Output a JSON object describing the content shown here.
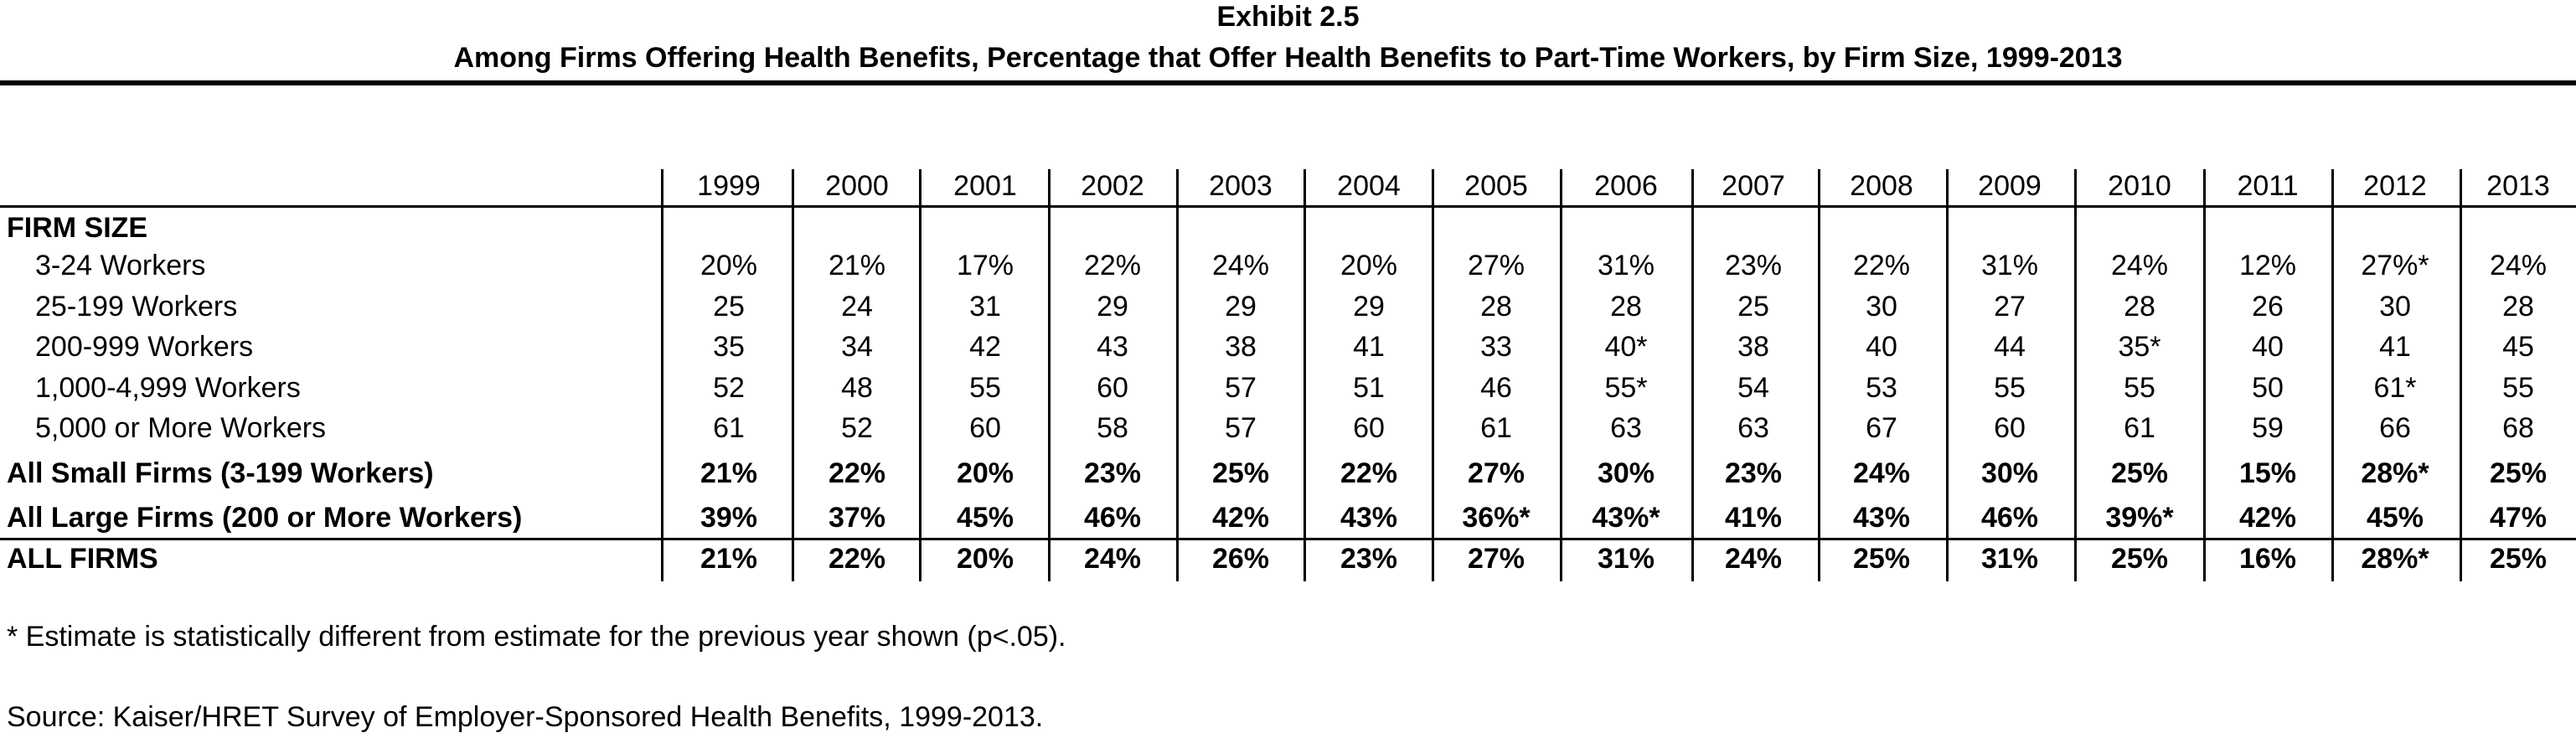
{
  "header": {
    "exhibit": "Exhibit 2.5",
    "subtitle": "Among Firms Offering Health Benefits, Percentage that Offer Health Benefits to Part-Time Workers, by Firm Size, 1999-2013"
  },
  "table": {
    "years": [
      "1999",
      "2000",
      "2001",
      "2002",
      "2003",
      "2004",
      "2005",
      "2006",
      "2007",
      "2008",
      "2009",
      "2010",
      "2011",
      "2012",
      "2013"
    ],
    "section_label": "FIRM SIZE",
    "rows": [
      {
        "label": "3-24 Workers",
        "style": "indent",
        "cells": [
          "20%",
          "21%",
          "17%",
          "22%",
          "24%",
          "20%",
          "27%",
          "31%",
          "23%",
          "22%",
          "31%",
          "24%",
          "12%",
          "27%*",
          "24%"
        ]
      },
      {
        "label": "25-199 Workers",
        "style": "indent",
        "cells": [
          "25",
          "24",
          "31",
          "29",
          "29",
          "29",
          "28",
          "28",
          "25",
          "30",
          "27",
          "28",
          "26",
          "30",
          "28"
        ]
      },
      {
        "label": "200-999 Workers",
        "style": "indent",
        "cells": [
          "35",
          "34",
          "42",
          "43",
          "38",
          "41",
          "33",
          "40*",
          "38",
          "40",
          "44",
          "35*",
          "40",
          "41",
          "45"
        ]
      },
      {
        "label": "1,000-4,999 Workers",
        "style": "indent",
        "cells": [
          "52",
          "48",
          "55",
          "60",
          "57",
          "51",
          "46",
          "55*",
          "54",
          "53",
          "55",
          "55",
          "50",
          "61*",
          "55"
        ]
      },
      {
        "label": "5,000 or More Workers",
        "style": "indent",
        "cells": [
          "61",
          "52",
          "60",
          "58",
          "57",
          "60",
          "61",
          "63",
          "63",
          "67",
          "60",
          "61",
          "59",
          "66",
          "68"
        ]
      },
      {
        "label": "All Small Firms (3-199 Workers)",
        "style": "bold",
        "cells": [
          "21%",
          "22%",
          "20%",
          "23%",
          "25%",
          "22%",
          "27%",
          "30%",
          "23%",
          "24%",
          "30%",
          "25%",
          "15%",
          "28%*",
          "25%"
        ]
      },
      {
        "label": "All Large Firms (200 or More Workers)",
        "style": "bold",
        "cells": [
          "39%",
          "37%",
          "45%",
          "46%",
          "42%",
          "43%",
          "36%*",
          "43%*",
          "41%",
          "43%",
          "46%",
          "39%*",
          "42%",
          "45%",
          "47%"
        ]
      },
      {
        "label": "ALL FIRMS",
        "style": "bold",
        "cells": [
          "21%",
          "22%",
          "20%",
          "24%",
          "26%",
          "23%",
          "27%",
          "31%",
          "24%",
          "25%",
          "31%",
          "25%",
          "16%",
          "28%*",
          "25%"
        ]
      }
    ]
  },
  "notes": {
    "footnote": "* Estimate is statistically different from estimate for the previous year shown (p<.05).",
    "source": "Source: Kaiser/HRET Survey of Employer-Sponsored Health Benefits, 1999-2013."
  },
  "chart_data": {
    "type": "table",
    "title": "Exhibit 2.5",
    "subtitle": "Among Firms Offering Health Benefits, Percentage that Offer Health Benefits to Part-Time Workers, by Firm Size, 1999-2013",
    "columns": [
      "1999",
      "2000",
      "2001",
      "2002",
      "2003",
      "2004",
      "2005",
      "2006",
      "2007",
      "2008",
      "2009",
      "2010",
      "2011",
      "2012",
      "2013"
    ],
    "series": [
      {
        "name": "3-24 Workers",
        "values": [
          20,
          21,
          17,
          22,
          24,
          20,
          27,
          31,
          23,
          22,
          31,
          24,
          12,
          27,
          24
        ]
      },
      {
        "name": "25-199 Workers",
        "values": [
          25,
          24,
          31,
          29,
          29,
          29,
          28,
          28,
          25,
          30,
          27,
          28,
          26,
          30,
          28
        ]
      },
      {
        "name": "200-999 Workers",
        "values": [
          35,
          34,
          42,
          43,
          38,
          41,
          33,
          40,
          38,
          40,
          44,
          35,
          40,
          41,
          45
        ]
      },
      {
        "name": "1,000-4,999 Workers",
        "values": [
          52,
          48,
          55,
          60,
          57,
          51,
          46,
          55,
          54,
          53,
          55,
          55,
          50,
          61,
          55
        ]
      },
      {
        "name": "5,000 or More Workers",
        "values": [
          61,
          52,
          60,
          58,
          57,
          60,
          61,
          63,
          63,
          67,
          60,
          61,
          59,
          66,
          68
        ]
      },
      {
        "name": "All Small Firms (3-199 Workers)",
        "values": [
          21,
          22,
          20,
          23,
          25,
          22,
          27,
          30,
          23,
          24,
          30,
          25,
          15,
          28,
          25
        ]
      },
      {
        "name": "All Large Firms (200 or More Workers)",
        "values": [
          39,
          37,
          45,
          46,
          42,
          43,
          36,
          43,
          41,
          43,
          46,
          39,
          42,
          45,
          47
        ]
      },
      {
        "name": "ALL FIRMS",
        "values": [
          21,
          22,
          20,
          24,
          26,
          23,
          27,
          31,
          24,
          25,
          31,
          25,
          16,
          28,
          25
        ]
      }
    ]
  }
}
